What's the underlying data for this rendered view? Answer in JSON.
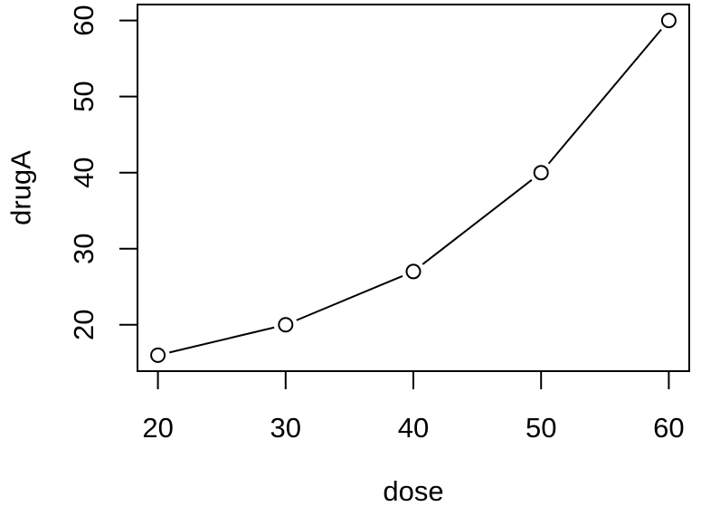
{
  "figure": {
    "xlabel": "dose",
    "ylabel": "drugA"
  },
  "chart_data": {
    "type": "line",
    "x": [
      20,
      30,
      40,
      50,
      60
    ],
    "series": [
      {
        "name": "drugA",
        "values": [
          16,
          20,
          27,
          40,
          60
        ],
        "marker": "open-circle",
        "line_style": "solid",
        "color": "#000000"
      }
    ],
    "title": "",
    "xlabel": "dose",
    "ylabel": "drugA",
    "xticks": [
      20,
      30,
      40,
      50,
      60
    ],
    "yticks": [
      20,
      30,
      40,
      50,
      60
    ],
    "xlim": [
      18.4,
      61.6
    ],
    "ylim": [
      13.9,
      62.1
    ],
    "grid": false,
    "legend_position": "none",
    "background": "#ffffff",
    "foreground": "#000000"
  }
}
